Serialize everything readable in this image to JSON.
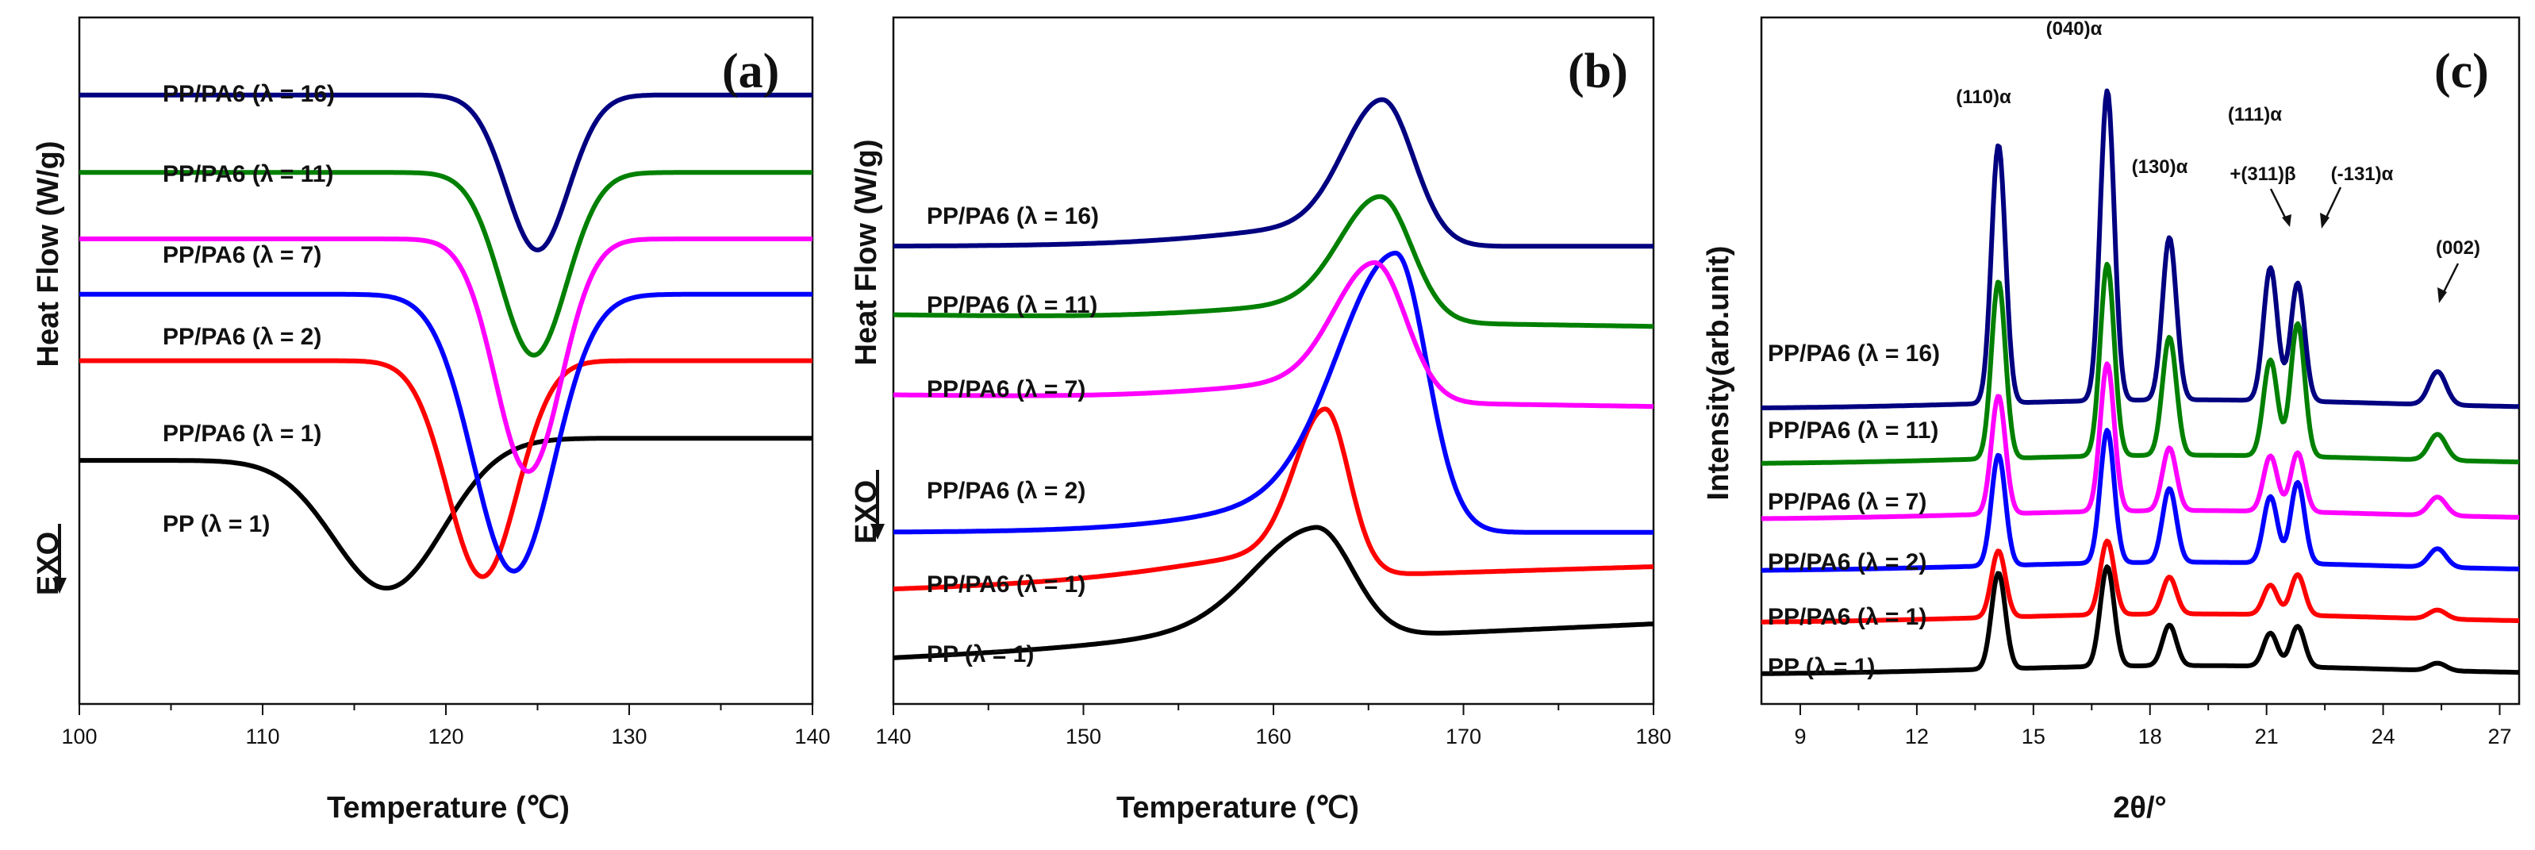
{
  "chart_data": [
    {
      "id": "a",
      "type": "line",
      "panel_letter": "(a)",
      "xlabel": "Temperature (℃)",
      "ylabel": "Heat Flow (W/g)",
      "exo_label": "EXO",
      "xlim": [
        100,
        140
      ],
      "xticks": [
        "100",
        "110",
        "120",
        "130",
        "140"
      ],
      "ylim": [
        -0.6,
        5.6
      ],
      "series": [
        {
          "name": "PP (λ = 1)",
          "label": "PP (λ = 1)",
          "color": "#000000",
          "baseline_left": 1.6,
          "baseline_right": 1.8,
          "peak_x": 117,
          "peak_width": 3.0,
          "depth": 1.25
        },
        {
          "name": "PP/PA6 (λ = 1)",
          "label": "PP/PA6 (λ = 1)",
          "color": "#ff0000",
          "baseline_left": 2.5,
          "baseline_right": 2.5,
          "peak_x": 122,
          "peak_width": 1.9,
          "depth": 1.95
        },
        {
          "name": "PP/PA6 (λ = 2)",
          "label": "PP/PA6 (λ = 2)",
          "color": "#0000ff",
          "baseline_left": 3.1,
          "baseline_right": 3.1,
          "peak_x": 123.7,
          "peak_width": 2.2,
          "depth": 2.5
        },
        {
          "name": "PP/PA6 (λ = 7)",
          "label": "PP/PA6 (λ = 7)",
          "color": "#ff00ff",
          "baseline_left": 3.6,
          "baseline_right": 3.6,
          "peak_x": 124.5,
          "peak_width": 1.8,
          "depth": 2.1
        },
        {
          "name": "PP/PA6 (λ = 11)",
          "label": "PP/PA6 (λ = 11)",
          "color": "#008000",
          "baseline_left": 4.2,
          "baseline_right": 4.2,
          "peak_x": 124.8,
          "peak_width": 1.8,
          "depth": 1.65
        },
        {
          "name": "PP/PA6 (λ = 16)",
          "label": "PP/PA6 (λ = 16)",
          "color": "#000080",
          "baseline_left": 4.9,
          "baseline_right": 4.9,
          "peak_x": 125,
          "peak_width": 1.7,
          "depth": 1.4
        }
      ]
    },
    {
      "id": "b",
      "type": "line",
      "panel_letter": "(b)",
      "xlabel": "Temperature (℃)",
      "ylabel": "Heat Flow (W/g)",
      "exo_label": "EXO",
      "xlim": [
        140,
        180
      ],
      "xticks": [
        "140",
        "150",
        "160",
        "170",
        "180"
      ],
      "ylim": [
        -0.4,
        5.6
      ],
      "series": [
        {
          "name": "PP (λ = 1)",
          "label": "PP  (λ = 1)",
          "color": "#000000",
          "base_start": 0.0,
          "base_end": 0.3,
          "peak_x": 162.2,
          "width_left": 3.2,
          "width_right": 2.0,
          "height": 0.8
        },
        {
          "name": "PP/PA6 (λ = 1)",
          "label": "PP/PA6 (λ = 1)",
          "color": "#ff0000",
          "base_start": 0.6,
          "base_end": 0.8,
          "peak_x": 162.7,
          "width_left": 1.6,
          "width_right": 1.3,
          "height": 1.2
        },
        {
          "name": "PP/PA6 (λ = 2)",
          "label": "PP/PA6 (λ = 2)",
          "color": "#0000ff",
          "base_start": 1.1,
          "base_end": 1.1,
          "peak_x": 166.4,
          "width_left": 3.0,
          "width_right": 1.7,
          "height": 2.0
        },
        {
          "name": "PP/PA6 (λ = 7)",
          "label": "PP/PA6 (λ = 7)",
          "color": "#ff00ff",
          "base_start": 2.3,
          "base_end": 2.2,
          "peak_x": 165.3,
          "width_left": 2.1,
          "width_right": 1.7,
          "height": 1.0
        },
        {
          "name": "PP/PA6 (λ = 11)",
          "label": "PP/PA6 (λ = 11)",
          "color": "#008000",
          "base_start": 3.0,
          "base_end": 2.9,
          "peak_x": 165.6,
          "width_left": 2.1,
          "width_right": 1.7,
          "height": 0.9
        },
        {
          "name": "PP/PA6 (λ = 16)",
          "label": "PP/PA6 (λ = 16)",
          "color": "#000080",
          "base_start": 3.6,
          "base_end": 3.6,
          "peak_x": 165.7,
          "width_left": 2.0,
          "width_right": 1.7,
          "height": 1.05
        }
      ]
    },
    {
      "id": "c",
      "type": "line",
      "panel_letter": "(c)",
      "xlabel": "2θ/°",
      "ylabel": "Intensity(arb.unit)",
      "xlim": [
        8,
        27.5
      ],
      "xticks": [
        "9",
        "12",
        "15",
        "18",
        "21",
        "24",
        "27"
      ],
      "ylim": [
        -0.3,
        9.0
      ],
      "peak_positions": [
        14.1,
        16.9,
        18.5,
        21.1,
        21.8,
        25.4
      ],
      "series": [
        {
          "name": "PP (λ = 1)",
          "label": "PP (λ = 1)",
          "color": "#000000",
          "offset": 0.0,
          "peak_heights": [
            1.3,
            1.35,
            0.55,
            0.45,
            0.55,
            0.1
          ]
        },
        {
          "name": "PP/PA6 (λ = 1)",
          "label": "PP/PA6 (λ = 1)",
          "color": "#ff0000",
          "offset": 0.7,
          "peak_heights": [
            0.9,
            1.0,
            0.5,
            0.4,
            0.55,
            0.12
          ]
        },
        {
          "name": "PP/PA6 (λ = 2)",
          "label": "PP/PA6 (λ = 2)",
          "color": "#0000ff",
          "offset": 1.4,
          "peak_heights": [
            1.5,
            1.8,
            1.0,
            0.9,
            1.1,
            0.25
          ]
        },
        {
          "name": "PP/PA6 (λ = 7)",
          "label": "PP/PA6 (λ = 7)",
          "color": "#ff00ff",
          "offset": 2.1,
          "peak_heights": [
            1.6,
            2.0,
            0.85,
            0.75,
            0.8,
            0.25
          ]
        },
        {
          "name": "PP/PA6 (λ = 11)",
          "label": "PP/PA6 (λ = 11)",
          "color": "#008000",
          "offset": 2.85,
          "peak_heights": [
            2.4,
            2.6,
            1.6,
            1.3,
            1.8,
            0.35
          ]
        },
        {
          "name": "PP/PA6 (λ = 16)",
          "label": "PP/PA6 (λ = 16)",
          "color": "#000080",
          "offset": 3.6,
          "peak_heights": [
            3.5,
            4.2,
            2.2,
            1.8,
            1.6,
            0.45
          ]
        }
      ],
      "annotations": [
        "(110)α",
        "(040)α",
        "(130)α",
        "(111)α",
        "+(311)β",
        "(-131)α",
        "(002)"
      ]
    }
  ]
}
